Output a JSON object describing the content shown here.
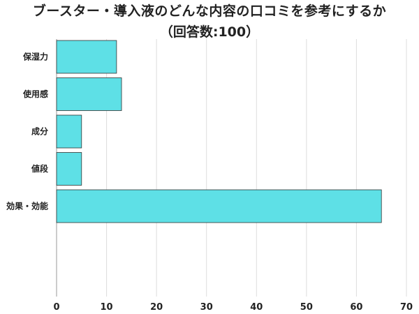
{
  "chart_data": {
    "type": "bar",
    "orientation": "horizontal",
    "title": "ブースター・導入液のどんな内容の口コミを参考にするか",
    "subtitle": "（回答数:100）",
    "categories": [
      "保湿力",
      "使用感",
      "成分",
      "値段",
      "効果・効能"
    ],
    "values": [
      12,
      13,
      5,
      5,
      65
    ],
    "xlim": [
      0,
      70
    ],
    "x_ticks": [
      0,
      10,
      20,
      30,
      40,
      50,
      60,
      70
    ],
    "grid": true,
    "legend": "none",
    "bar_color": "#5ee0e6",
    "bar_edge_color": "#333333",
    "grid_color": "#dddddd"
  }
}
